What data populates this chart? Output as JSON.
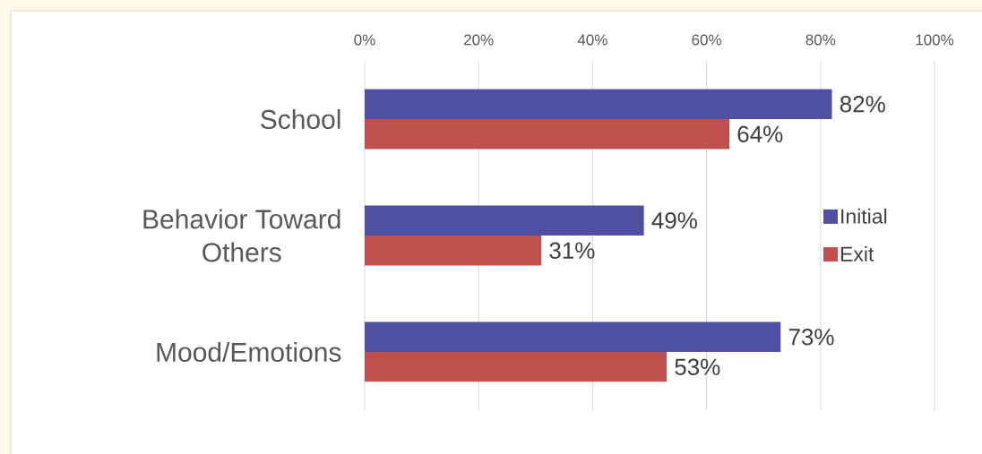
{
  "chart_data": {
    "type": "bar",
    "orientation": "horizontal",
    "categories": [
      "School",
      "Behavior Toward Others",
      "Mood/Emotions"
    ],
    "series": [
      {
        "name": "Initial",
        "color": "#5050a3",
        "values": [
          82,
          49,
          73
        ],
        "value_labels": [
          "82%",
          "49%",
          "73%"
        ]
      },
      {
        "name": "Exit",
        "color": "#c0504d",
        "values": [
          64,
          31,
          53
        ],
        "value_labels": [
          "64%",
          "31%",
          "53%"
        ]
      }
    ],
    "xlim": [
      0,
      100
    ],
    "xticks": [
      {
        "value": 0,
        "label": "0%"
      },
      {
        "value": 20,
        "label": "20%"
      },
      {
        "value": 40,
        "label": "40%"
      },
      {
        "value": 60,
        "label": "60%"
      },
      {
        "value": 80,
        "label": "80%"
      },
      {
        "value": 100,
        "label": "100%"
      }
    ],
    "grid": "x",
    "legend": "right"
  }
}
